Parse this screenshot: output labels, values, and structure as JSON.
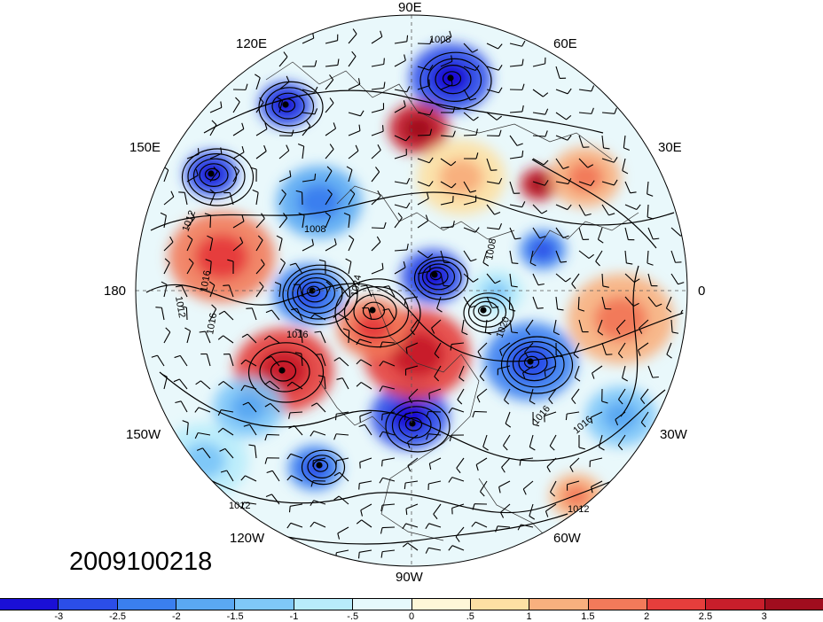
{
  "map": {
    "projection": "north polar stereographic",
    "fields": {
      "shading": "anomaly",
      "contours": "sea level pressure (hPa)",
      "vectors": "wind barbs"
    },
    "longitude_labels": {
      "n90e": "90E",
      "n60e": "60E",
      "n120e": "120E",
      "n30e": "30E",
      "n150e": "150E",
      "n0": "0",
      "n180": "180",
      "n30w": "30W",
      "n150w": "150W",
      "n60w": "60W",
      "n120w": "120W",
      "n90w": "90W"
    },
    "contour_labels": {
      "c1": "1008",
      "c2": "1012",
      "c3": "1016",
      "c4": "1016",
      "c5": "1012",
      "c6": "1008",
      "c7": "1024",
      "c8": "1016",
      "c9": "1020",
      "c10": "1016",
      "c11": "1016",
      "c12": "1008",
      "c13": "1012",
      "c14": "1012"
    }
  },
  "date_stamp": "2009100218",
  "colorbar": {
    "colors": [
      "#1a0fd6",
      "#2b4ee8",
      "#3a7fef",
      "#5aa8f2",
      "#7fc8f8",
      "#b8ecfb",
      "#e6f9fc",
      "#fef7d8",
      "#fde0a3",
      "#f8b07e",
      "#f27a5a",
      "#e63e3c",
      "#c81e2b",
      "#a00d1e"
    ],
    "labels": [
      "-3",
      "-2.5",
      "-2",
      "-1.5",
      "-1",
      "-.5",
      "0",
      ".5",
      "1",
      "1.5",
      "2",
      "2.5",
      "3"
    ]
  },
  "anomaly_blobs": [
    {
      "v": -2.8
    },
    {
      "v": -3.0
    },
    {
      "v": -2.6
    },
    {
      "v": -2.0
    },
    {
      "v": -2.5
    },
    {
      "v": -2.7
    },
    {
      "v": -2.2
    },
    {
      "v": -2.4
    },
    {
      "v": -2.9
    },
    {
      "v": -2.3
    },
    {
      "v": 2.5
    },
    {
      "v": 2.0
    },
    {
      "v": 2.2
    },
    {
      "v": 1.8
    },
    {
      "v": 2.6
    },
    {
      "v": 1.5
    },
    {
      "v": 1.2
    },
    {
      "v": 1.0
    },
    {
      "v": -1.0
    },
    {
      "v": -1.2
    },
    {
      "v": 0.8
    },
    {
      "v": -0.8
    },
    {
      "v": 1.4
    },
    {
      "v": -1.5
    }
  ],
  "pressure_systems": [
    {
      "type": "low",
      "rings": 4
    },
    {
      "type": "low",
      "rings": 5
    },
    {
      "type": "low",
      "rings": 4
    },
    {
      "type": "low",
      "rings": 6
    },
    {
      "type": "low",
      "rings": 5
    },
    {
      "type": "low",
      "rings": 4
    },
    {
      "type": "low",
      "rings": 5
    },
    {
      "type": "high",
      "rings": 3
    },
    {
      "type": "high",
      "rings": 4
    },
    {
      "type": "low",
      "rings": 4
    },
    {
      "type": "low",
      "rings": 3
    }
  ]
}
